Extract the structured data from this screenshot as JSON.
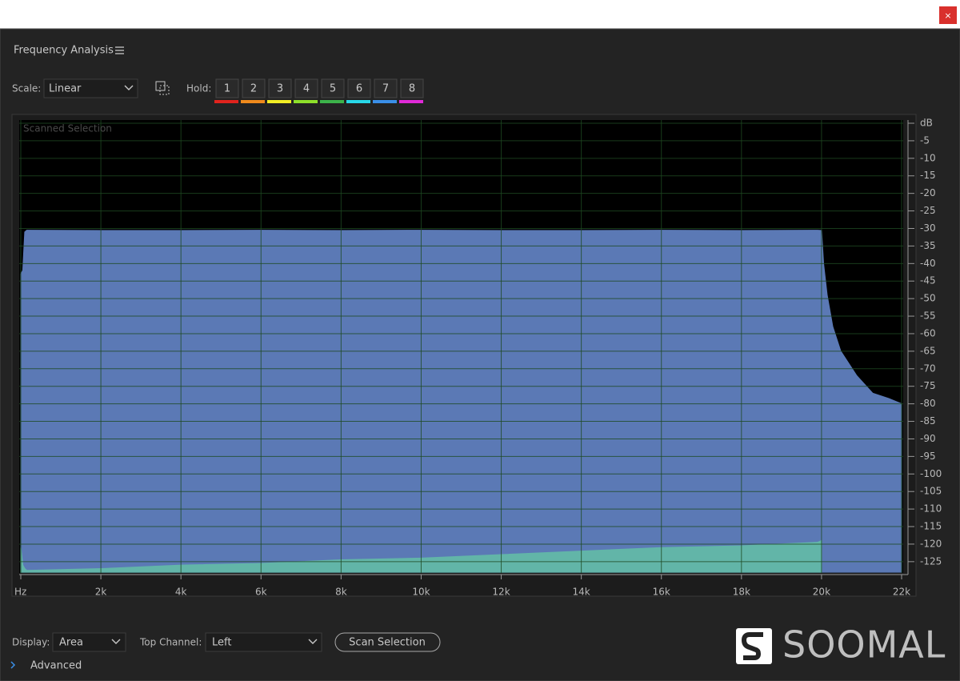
{
  "window": {
    "close": "×"
  },
  "panel": {
    "title": "Frequency Analysis",
    "scale_label": "Scale:",
    "scale_value": "Linear",
    "hold_label": "Hold:",
    "hold_buttons": [
      {
        "label": "1",
        "color": "#e0231d"
      },
      {
        "label": "2",
        "color": "#f08a1c"
      },
      {
        "label": "3",
        "color": "#f2ee25"
      },
      {
        "label": "4",
        "color": "#8ee02a"
      },
      {
        "label": "5",
        "color": "#3cb34a"
      },
      {
        "label": "6",
        "color": "#28d8e8"
      },
      {
        "label": "7",
        "color": "#3a8fe8"
      },
      {
        "label": "8",
        "color": "#e02ad8"
      }
    ]
  },
  "chart_data": {
    "type": "area",
    "annotation": "Scanned Selection",
    "x": [
      0,
      50,
      100,
      150,
      2000,
      4000,
      6000,
      8000,
      10000,
      12000,
      14000,
      16000,
      18000,
      19900,
      20000,
      20050,
      20140,
      20280,
      20480,
      20880,
      21280,
      21680,
      22000
    ],
    "series": [
      {
        "color": "#5b79b5",
        "values": [
          -43,
          -42,
          -31,
          -30.5,
          -30.6,
          -30.6,
          -30.5,
          -30.6,
          -30.5,
          -30.6,
          -30.6,
          -30.5,
          -30.6,
          -30.5,
          -30.6,
          -40,
          -49,
          -58,
          -65,
          -72,
          -77,
          -78.5,
          -80
        ]
      },
      {
        "color": "#62b5a8",
        "values": [
          -121,
          -126,
          -127,
          -127.5,
          -127,
          -126,
          -125.5,
          -124.5,
          -124,
          -123,
          -122,
          -121,
          -120.5,
          -119.5,
          -119,
          null,
          null,
          null,
          null,
          null,
          null,
          null,
          null
        ]
      }
    ],
    "xlim": [
      0,
      22000
    ],
    "xticks": [
      {
        "value": 0,
        "label": "Hz"
      },
      {
        "value": 2000,
        "label": "2k"
      },
      {
        "value": 4000,
        "label": "4k"
      },
      {
        "value": 6000,
        "label": "6k"
      },
      {
        "value": 8000,
        "label": "8k"
      },
      {
        "value": 10000,
        "label": "10k"
      },
      {
        "value": 12000,
        "label": "12k"
      },
      {
        "value": 14000,
        "label": "14k"
      },
      {
        "value": 16000,
        "label": "16k"
      },
      {
        "value": 18000,
        "label": "18k"
      },
      {
        "value": 20000,
        "label": "20k"
      },
      {
        "value": 22000,
        "label": "22k"
      }
    ],
    "ylim": [
      -128,
      0
    ],
    "yticks": [
      {
        "value": 0,
        "label": "dB"
      },
      -5,
      -10,
      -15,
      -20,
      -25,
      -30,
      -35,
      -40,
      -45,
      -50,
      -55,
      -60,
      -65,
      -70,
      -75,
      -80,
      -85,
      -90,
      -95,
      -100,
      -105,
      -110,
      -115,
      -120,
      -125
    ],
    "grid": true,
    "grid_color": "#1e4a22"
  },
  "controls": {
    "display_label": "Display:",
    "display_value": "Area",
    "top_channel_label": "Top Channel:",
    "top_channel_value": "Left",
    "scan_button": "Scan Selection",
    "advanced": "Advanced"
  },
  "watermark": "SOOMAL"
}
